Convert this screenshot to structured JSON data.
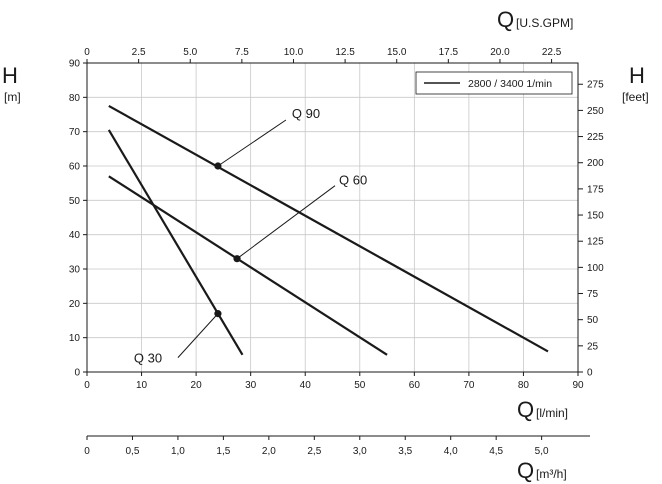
{
  "chart_data": {
    "type": "line",
    "legend": {
      "entry": "2800 / 3400 1/min",
      "placement": "top-right"
    },
    "grid": true,
    "axes": {
      "x_bottom": {
        "symbol": "Q",
        "unit": "[l/min]",
        "range": [
          0,
          90
        ],
        "ticks": [
          "0",
          "10",
          "20",
          "30",
          "40",
          "50",
          "60",
          "70",
          "80",
          "90"
        ]
      },
      "x_top": {
        "symbol": "Q",
        "unit": "[U.S.GPM]",
        "range": [
          0,
          23.78
        ],
        "ticks": [
          "0",
          "2.5",
          "5.0",
          "7.5",
          "10.0",
          "12.5",
          "15.0",
          "17.5",
          "20.0",
          "22.5"
        ]
      },
      "x_m3h": {
        "symbol": "Q",
        "unit": "[m³/h]",
        "range": [
          0,
          5.4
        ],
        "ticks": [
          "0",
          "0,5",
          "1,0",
          "1,5",
          "2,0",
          "2,5",
          "3,0",
          "3,5",
          "4,0",
          "4,5",
          "5,0"
        ]
      },
      "y_left": {
        "symbol": "H",
        "unit": "[m]",
        "range": [
          0,
          90
        ],
        "ticks": [
          "0",
          "10",
          "20",
          "30",
          "40",
          "50",
          "60",
          "70",
          "80",
          "90"
        ]
      },
      "y_right": {
        "symbol": "H",
        "unit": "[feet]",
        "range": [
          0,
          295.3
        ],
        "ticks": [
          "0",
          "25",
          "50",
          "75",
          "100",
          "125",
          "150",
          "175",
          "200",
          "225",
          "250",
          "275"
        ]
      }
    },
    "series": [
      {
        "name": "Q 90",
        "x": [
          4,
          84.5
        ],
        "y": [
          77.5,
          6
        ],
        "point": [
          24,
          60
        ]
      },
      {
        "name": "Q 60",
        "x": [
          4,
          55
        ],
        "y": [
          57,
          5
        ],
        "point": [
          27.5,
          33
        ]
      },
      {
        "name": "Q 30",
        "x": [
          4,
          28.5
        ],
        "y": [
          70.5,
          5
        ],
        "point": [
          24,
          17
        ]
      }
    ]
  }
}
